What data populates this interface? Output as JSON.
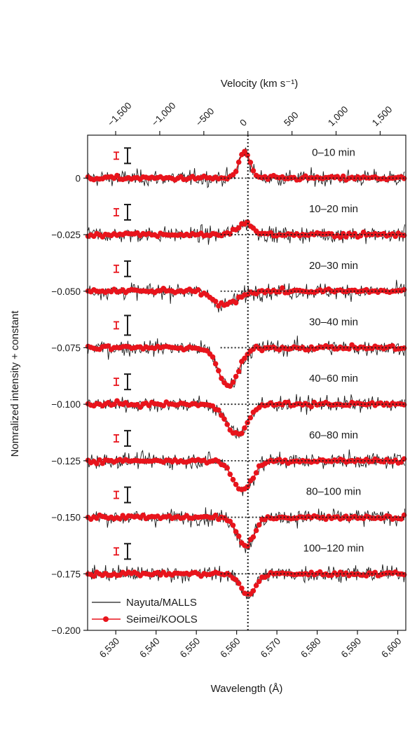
{
  "chart_data": {
    "type": "line",
    "xlabel": "Wavelength (Å)",
    "xlabel_top": "Velocity (km s⁻¹)",
    "ylabel": "Nomralized intensity + constant",
    "xlim": [
      6523,
      6602
    ],
    "ylim": [
      -0.2,
      0.019
    ],
    "x_ticks": [
      6530,
      6540,
      6550,
      6560,
      6570,
      6580,
      6590,
      6600
    ],
    "x_tick_labels": [
      "6,530",
      "6,540",
      "6,550",
      "6,560",
      "6,570",
      "6,580",
      "6,590",
      "6,600"
    ],
    "top_ticks": [
      -1500,
      -1000,
      -500,
      0,
      500,
      1000,
      1500
    ],
    "top_tick_labels": [
      "−1,500",
      "−1,000",
      "−500",
      "0",
      "500",
      "1,000",
      "1,500"
    ],
    "y_ticks": [
      0,
      -0.025,
      -0.05,
      -0.075,
      -0.1,
      -0.125,
      -0.15,
      -0.175,
      -0.2
    ],
    "y_tick_labels": [
      "0",
      "−0.025",
      "−0.050",
      "−0.075",
      "−0.100",
      "−0.125",
      "−0.150",
      "−0.175",
      "−0.200"
    ],
    "rest_wavelength": 6562.8,
    "legend": {
      "position": "bottom-left",
      "entries": [
        {
          "label": "Nayuta/MALLS",
          "color": "#1a1a1a",
          "marker": "line"
        },
        {
          "label": "Seimei/KOOLS",
          "color": "#e8141c",
          "marker": "line+circle"
        }
      ]
    },
    "panels": [
      {
        "label": "0–10 min",
        "offset": 0,
        "feature": {
          "center": 6562.0,
          "depth": -0.012,
          "width": 1.3
        }
      },
      {
        "label": "10–20 min",
        "offset": -0.025,
        "feature": {
          "center": 6562.0,
          "depth": -0.005,
          "width": 2.0
        }
      },
      {
        "label": "20–30 min",
        "offset": -0.05,
        "feature": {
          "center": 6557.0,
          "depth": 0.006,
          "width": 3.0
        }
      },
      {
        "label": "30–40 min",
        "offset": -0.075,
        "feature": {
          "center": 6558.0,
          "depth": 0.017,
          "width": 2.5
        }
      },
      {
        "label": "40–60 min",
        "offset": -0.1,
        "feature": {
          "center": 6560.0,
          "depth": 0.013,
          "width": 2.7
        }
      },
      {
        "label": "60–80 min",
        "offset": -0.125,
        "feature": {
          "center": 6561.5,
          "depth": 0.013,
          "width": 2.4
        }
      },
      {
        "label": "80–100 min",
        "offset": -0.15,
        "feature": {
          "center": 6562.3,
          "depth": 0.013,
          "width": 2.0
        }
      },
      {
        "label": "100–120 min",
        "offset": -0.175,
        "feature": {
          "center": 6562.8,
          "depth": 0.009,
          "width": 2.0
        }
      }
    ],
    "colors": {
      "nayuta": "#1a1a1a",
      "seimei": "#e8141c",
      "axis": "#1a1a1a"
    }
  }
}
